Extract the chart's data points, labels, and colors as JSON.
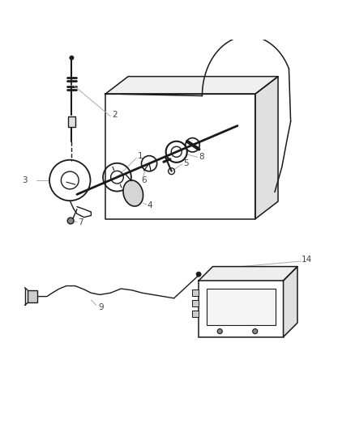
{
  "bg_color": "#ffffff",
  "line_color": "#1a1a1a",
  "leader_color": "#aaaaaa",
  "figsize": [
    4.38,
    5.33
  ],
  "dpi": 100
}
